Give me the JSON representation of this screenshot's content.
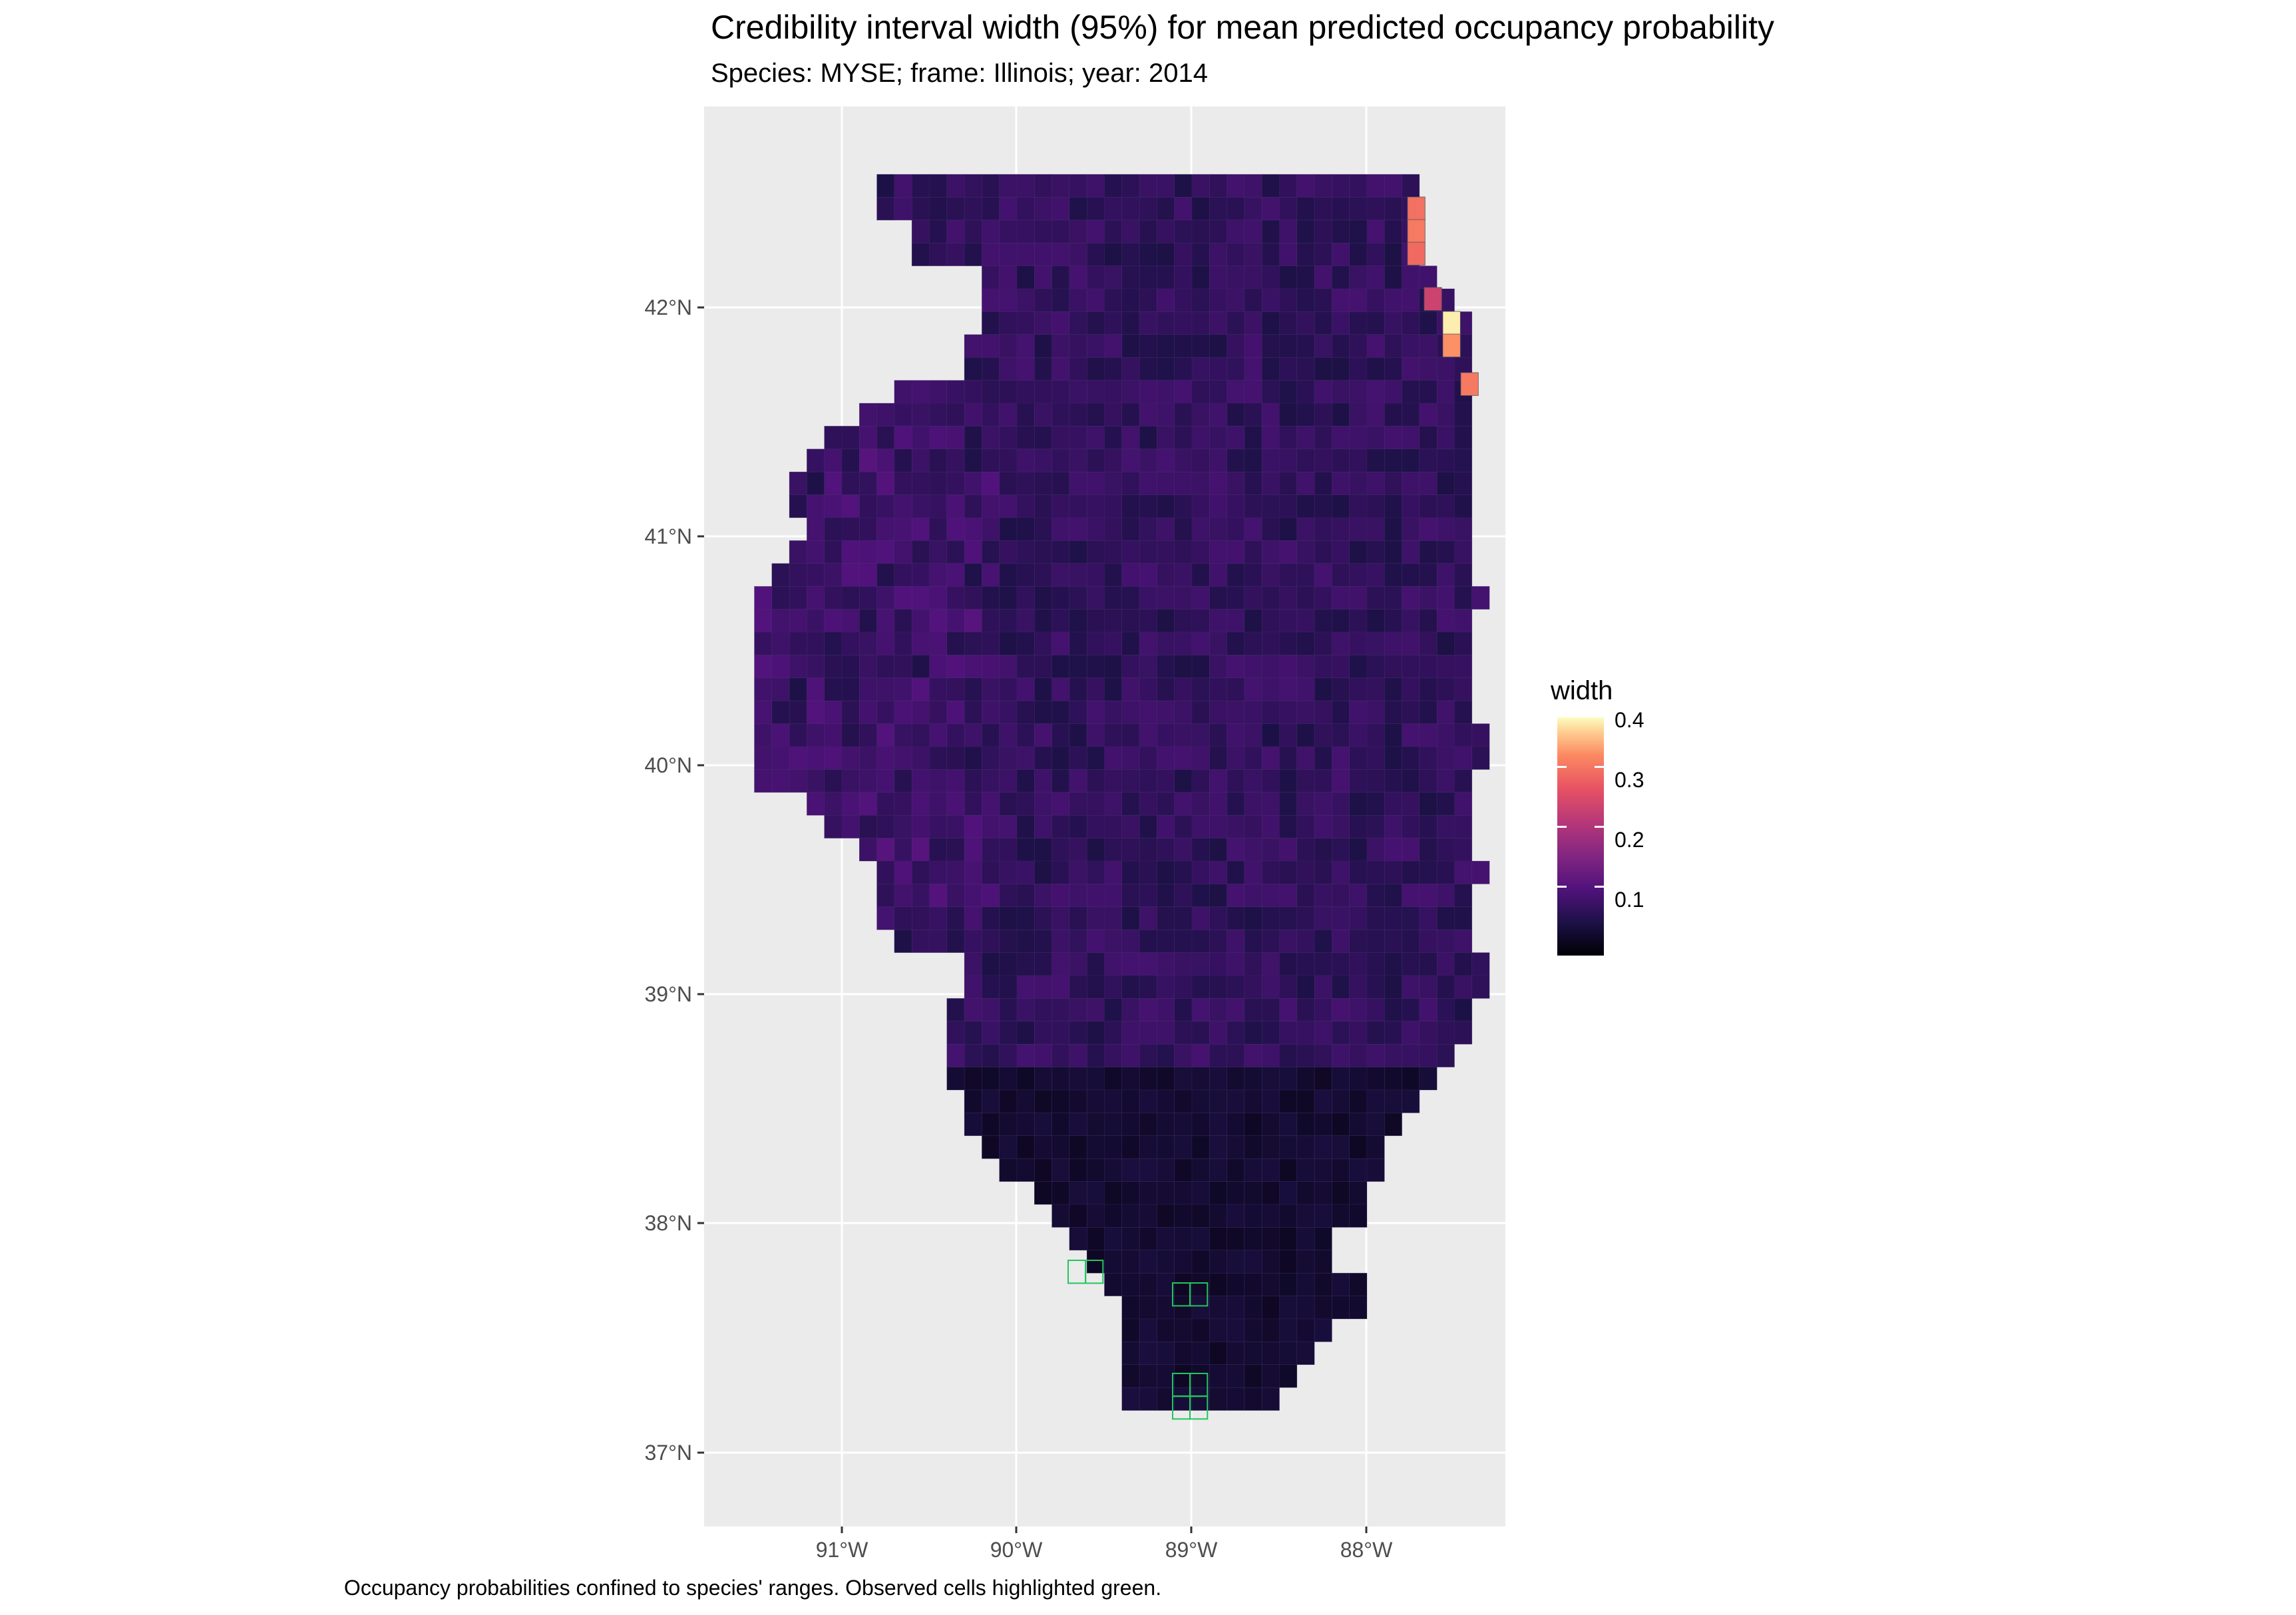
{
  "title": "Credibility interval width (95%) for mean predicted occupancy probability",
  "subtitle": "Species: MYSE; frame: Illinois; year: 2014",
  "caption": "Occupancy probabilities confined to species' ranges. Observed cells highlighted green.",
  "map": {
    "lat_ticks": [
      "37°N",
      "38°N",
      "39°N",
      "40°N",
      "41°N",
      "42°N"
    ],
    "lon_ticks": [
      "91°W",
      "90°W",
      "89°W",
      "88°W"
    ],
    "background_color": "#ebebeb",
    "grid_color": "#ffffff",
    "observed_highlight_color": "#22c55e"
  },
  "legend": {
    "title": "width",
    "labels": [
      "0.4",
      "0.3",
      "0.2",
      "0.1"
    ],
    "colormap": "magma"
  }
}
